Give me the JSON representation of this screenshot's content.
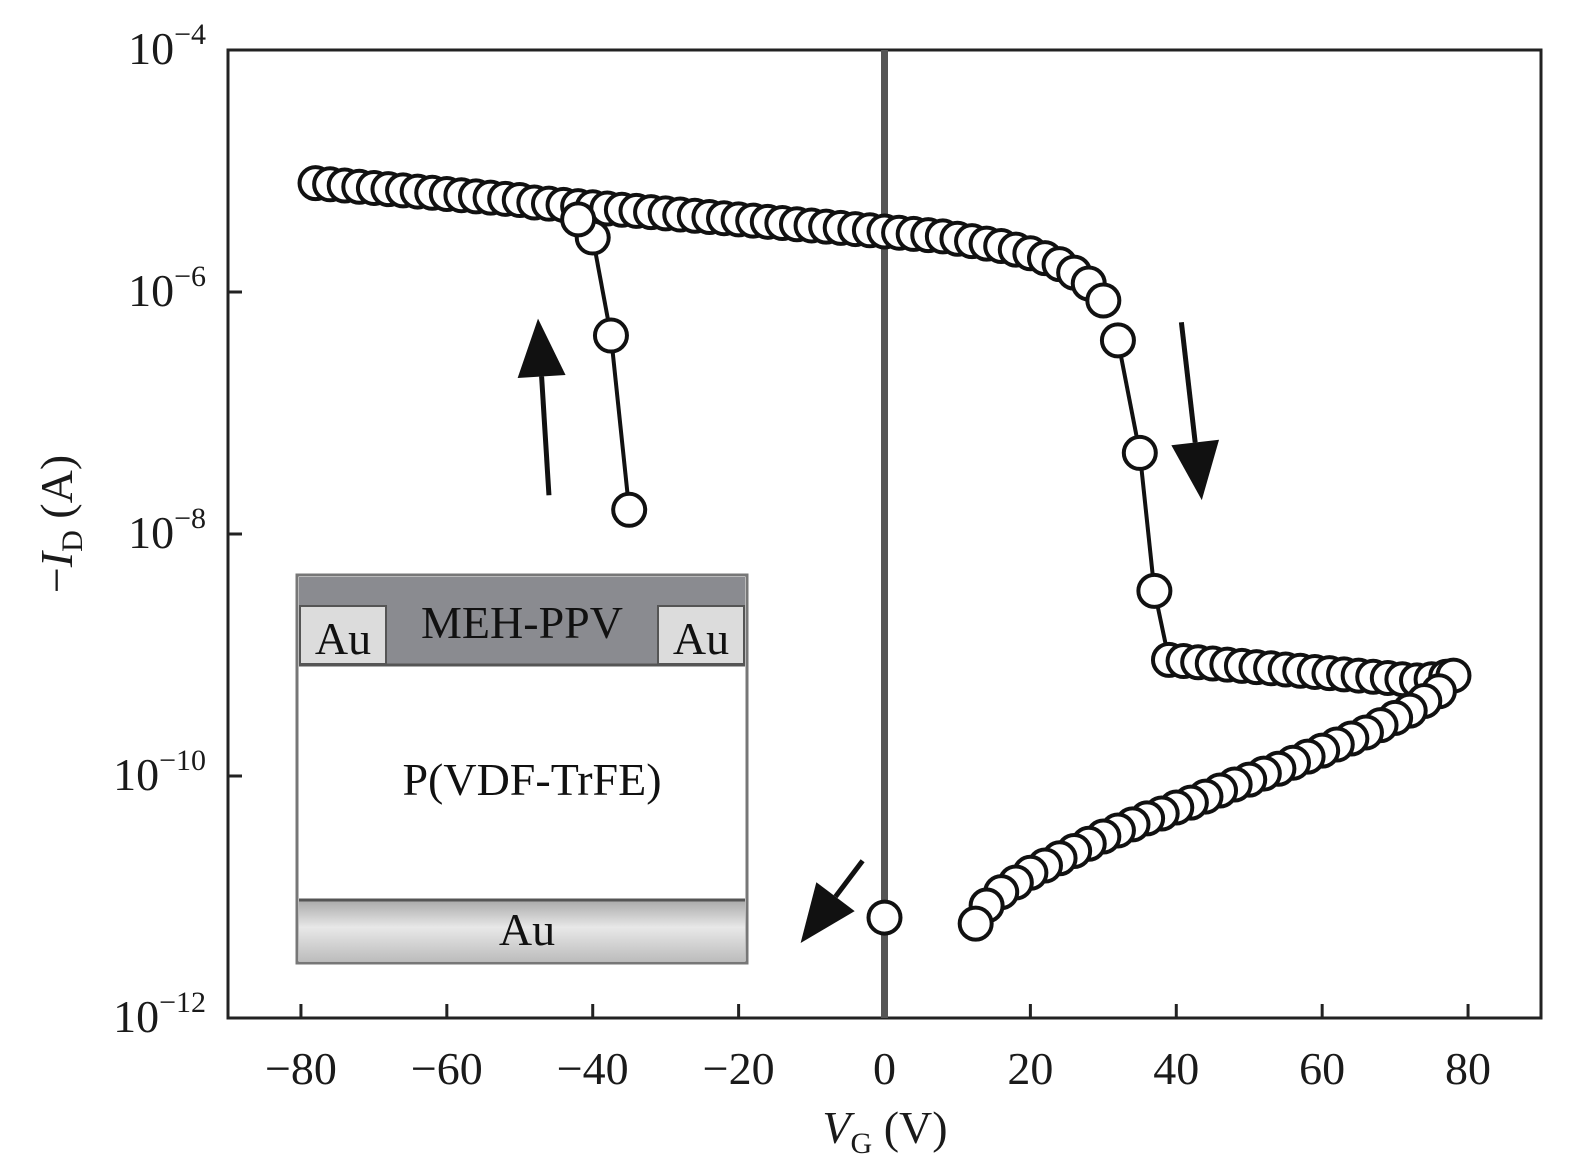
{
  "chart_data": {
    "type": "scatter",
    "title": "",
    "xlabel": {
      "symbol": "V",
      "subscript": "G",
      "unit": " (V)"
    },
    "ylabel": {
      "prefix": "−",
      "symbol": "I",
      "subscript": "D",
      "unit": " (A)"
    },
    "xlim": [
      -90,
      90
    ],
    "ylim": [
      -12,
      -4
    ],
    "y_scale": "log10",
    "x_ticks": [
      -80,
      -60,
      -40,
      -20,
      0,
      20,
      40,
      60,
      80
    ],
    "x_tick_labels": [
      "−80",
      "−60",
      "−40",
      "−20",
      "0",
      "20",
      "40",
      "60",
      "80"
    ],
    "y_ticks": [
      -12,
      -10,
      -8,
      -6,
      -4
    ],
    "y_tick_labels": [
      {
        "base": "10",
        "exp": "−12"
      },
      {
        "base": "10",
        "exp": "−10"
      },
      {
        "base": "10",
        "exp": "−8"
      },
      {
        "base": "10",
        "exp": "−6"
      },
      {
        "base": "10",
        "exp": "−4"
      }
    ],
    "grid": false,
    "vertical_reference_line_x": 0,
    "series": [
      {
        "points": [
          [
            -78,
            -5.1
          ],
          [
            -76,
            -5.11
          ],
          [
            -74,
            -5.12
          ],
          [
            -72,
            -5.13
          ],
          [
            -70,
            -5.14
          ],
          [
            -68,
            -5.15
          ],
          [
            -66,
            -5.16
          ],
          [
            -64,
            -5.17
          ],
          [
            -62,
            -5.18
          ],
          [
            -60,
            -5.19
          ],
          [
            -58,
            -5.2
          ],
          [
            -56,
            -5.21
          ],
          [
            -54,
            -5.22
          ],
          [
            -52,
            -5.23
          ],
          [
            -50,
            -5.24
          ],
          [
            -48,
            -5.26
          ],
          [
            -46,
            -5.27
          ],
          [
            -44,
            -5.28
          ],
          [
            -42,
            -5.29
          ],
          [
            -40,
            -5.3
          ],
          [
            -38,
            -5.31
          ],
          [
            -36,
            -5.32
          ],
          [
            -34,
            -5.33
          ],
          [
            -32,
            -5.34
          ],
          [
            -30,
            -5.35
          ],
          [
            -28,
            -5.36
          ],
          [
            -26,
            -5.37
          ],
          [
            -24,
            -5.38
          ],
          [
            -22,
            -5.39
          ],
          [
            -20,
            -5.4
          ],
          [
            -18,
            -5.41
          ],
          [
            -16,
            -5.42
          ],
          [
            -14,
            -5.43
          ],
          [
            -12,
            -5.44
          ],
          [
            -10,
            -5.45
          ],
          [
            -8,
            -5.46
          ],
          [
            -6,
            -5.47
          ],
          [
            -4,
            -5.48
          ],
          [
            -2,
            -5.49
          ],
          [
            0,
            -5.5
          ],
          [
            2,
            -5.51
          ],
          [
            4,
            -5.52
          ],
          [
            6,
            -5.53
          ],
          [
            8,
            -5.54
          ],
          [
            10,
            -5.56
          ],
          [
            12,
            -5.58
          ],
          [
            14,
            -5.6
          ],
          [
            16,
            -5.62
          ],
          [
            18,
            -5.65
          ],
          [
            20,
            -5.68
          ],
          [
            22,
            -5.72
          ],
          [
            24,
            -5.77
          ],
          [
            26,
            -5.84
          ],
          [
            28,
            -5.93
          ],
          [
            30,
            -6.07
          ],
          [
            32,
            -6.4
          ],
          [
            35,
            -7.33
          ],
          [
            37,
            -8.47
          ],
          [
            39,
            -9.04
          ],
          [
            41,
            -9.05
          ],
          [
            43,
            -9.06
          ],
          [
            45,
            -9.07
          ],
          [
            47,
            -9.08
          ],
          [
            49,
            -9.09
          ],
          [
            51,
            -9.1
          ],
          [
            53,
            -9.11
          ],
          [
            55,
            -9.12
          ],
          [
            57,
            -9.13
          ],
          [
            59,
            -9.14
          ],
          [
            61,
            -9.15
          ],
          [
            63,
            -9.16
          ],
          [
            65,
            -9.17
          ],
          [
            67,
            -9.18
          ],
          [
            69,
            -9.19
          ],
          [
            71,
            -9.2
          ],
          [
            73,
            -9.21
          ],
          [
            75,
            -9.2
          ],
          [
            77,
            -9.18
          ],
          [
            78,
            -9.17
          ],
          [
            76,
            -9.3
          ],
          [
            74,
            -9.38
          ],
          [
            72,
            -9.46
          ],
          [
            70,
            -9.52
          ],
          [
            68,
            -9.58
          ],
          [
            66,
            -9.64
          ],
          [
            64,
            -9.69
          ],
          [
            62,
            -9.74
          ],
          [
            60,
            -9.79
          ],
          [
            58,
            -9.84
          ],
          [
            56,
            -9.89
          ],
          [
            54,
            -9.94
          ],
          [
            52,
            -9.98
          ],
          [
            50,
            -10.03
          ],
          [
            48,
            -10.07
          ],
          [
            46,
            -10.12
          ],
          [
            44,
            -10.17
          ],
          [
            42,
            -10.22
          ],
          [
            40,
            -10.26
          ],
          [
            38,
            -10.31
          ],
          [
            36,
            -10.35
          ],
          [
            34,
            -10.4
          ],
          [
            32,
            -10.45
          ],
          [
            30,
            -10.5
          ],
          [
            28,
            -10.56
          ],
          [
            26,
            -10.62
          ],
          [
            24,
            -10.68
          ],
          [
            22,
            -10.74
          ],
          [
            20,
            -10.8
          ],
          [
            18,
            -10.88
          ],
          [
            16,
            -10.96
          ],
          [
            14,
            -11.07
          ],
          [
            12.5,
            -11.22
          ],
          [
            0,
            -11.17
          ],
          [
            -35,
            -7.8
          ],
          [
            -37.5,
            -6.36
          ],
          [
            -40,
            -5.55
          ],
          [
            -42,
            -5.4
          ]
        ]
      }
    ],
    "annotations": [
      {
        "type": "arrow",
        "direction": "up",
        "from": [
          -46,
          -7.68
        ],
        "to": [
          -47.5,
          -6.22
        ]
      },
      {
        "type": "arrow",
        "direction": "down",
        "from": [
          40.7,
          -6.25
        ],
        "to": [
          43.5,
          -7.72
        ]
      },
      {
        "type": "arrow",
        "direction": "down-left",
        "from": [
          -3,
          -10.7
        ],
        "to": [
          -11.5,
          -11.38
        ]
      }
    ],
    "inset": {
      "top_label": "MEH-PPV",
      "left_electrode": "Au",
      "right_electrode": "Au",
      "middle_label": "P(VDF-TrFE)",
      "bottom_label": "Au",
      "colors": {
        "top": "#8a8b90",
        "electrode": "#dcdcdc",
        "bottom": "#cfcfcf"
      }
    },
    "colors": {
      "marker_stroke": "#111111",
      "marker_fill": "#ffffff",
      "axis": "#222222",
      "reference_line": "#555555"
    }
  }
}
